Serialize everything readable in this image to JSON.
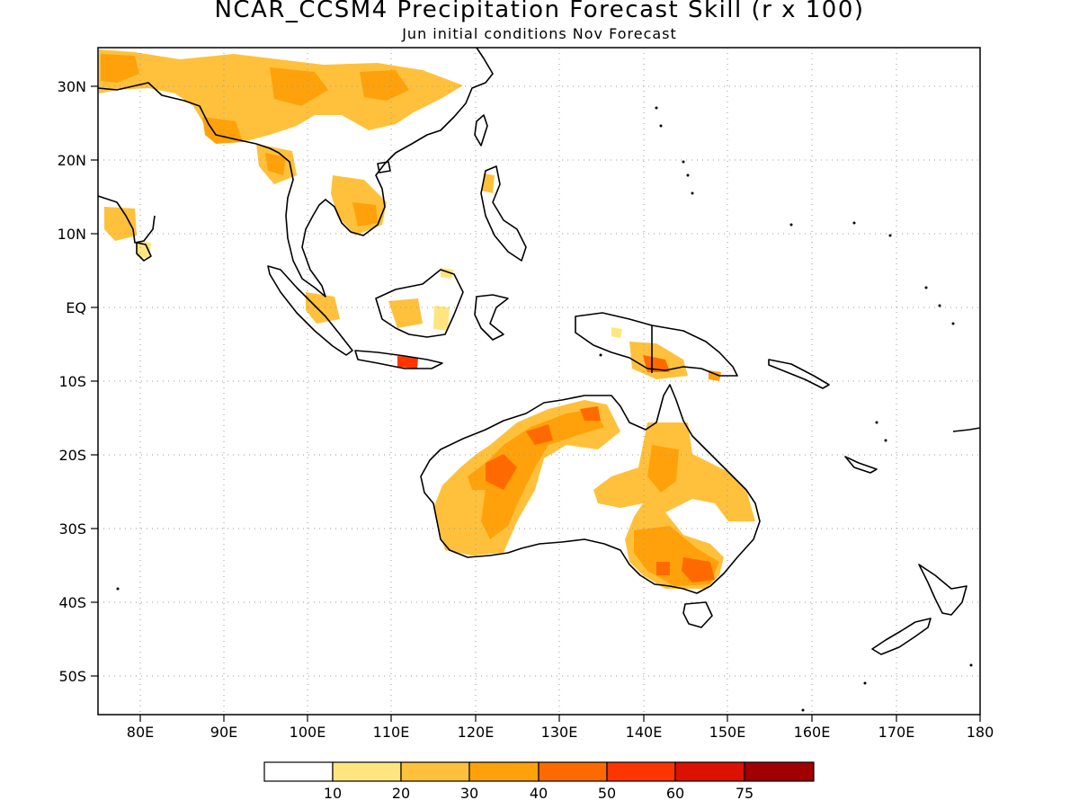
{
  "title": "NCAR_CCSM4 Precipitation Forecast Skill (r x 100)",
  "subtitle": "Jun initial conditions  Nov Forecast",
  "lat_labels": [
    "30N",
    "20N",
    "10N",
    "EQ",
    "10S",
    "20S",
    "30S",
    "40S",
    "50S"
  ],
  "lon_labels": [
    "80E",
    "90E",
    "100E",
    "110E",
    "120E",
    "130E",
    "140E",
    "150E",
    "160E",
    "170E",
    "180"
  ],
  "colorbar": {
    "labels": [
      "10",
      "20",
      "30",
      "40",
      "50",
      "60",
      "75"
    ],
    "colors": [
      "#ffffff",
      "#ffe57f",
      "#ffc13c",
      "#ffa10a",
      "#ff6a00",
      "#ff3500",
      "#dd1100",
      "#a00000"
    ]
  },
  "map": {
    "lon_range": [
      75,
      180
    ],
    "lat_range": [
      -55,
      35
    ],
    "gridlines": "dotted"
  }
}
